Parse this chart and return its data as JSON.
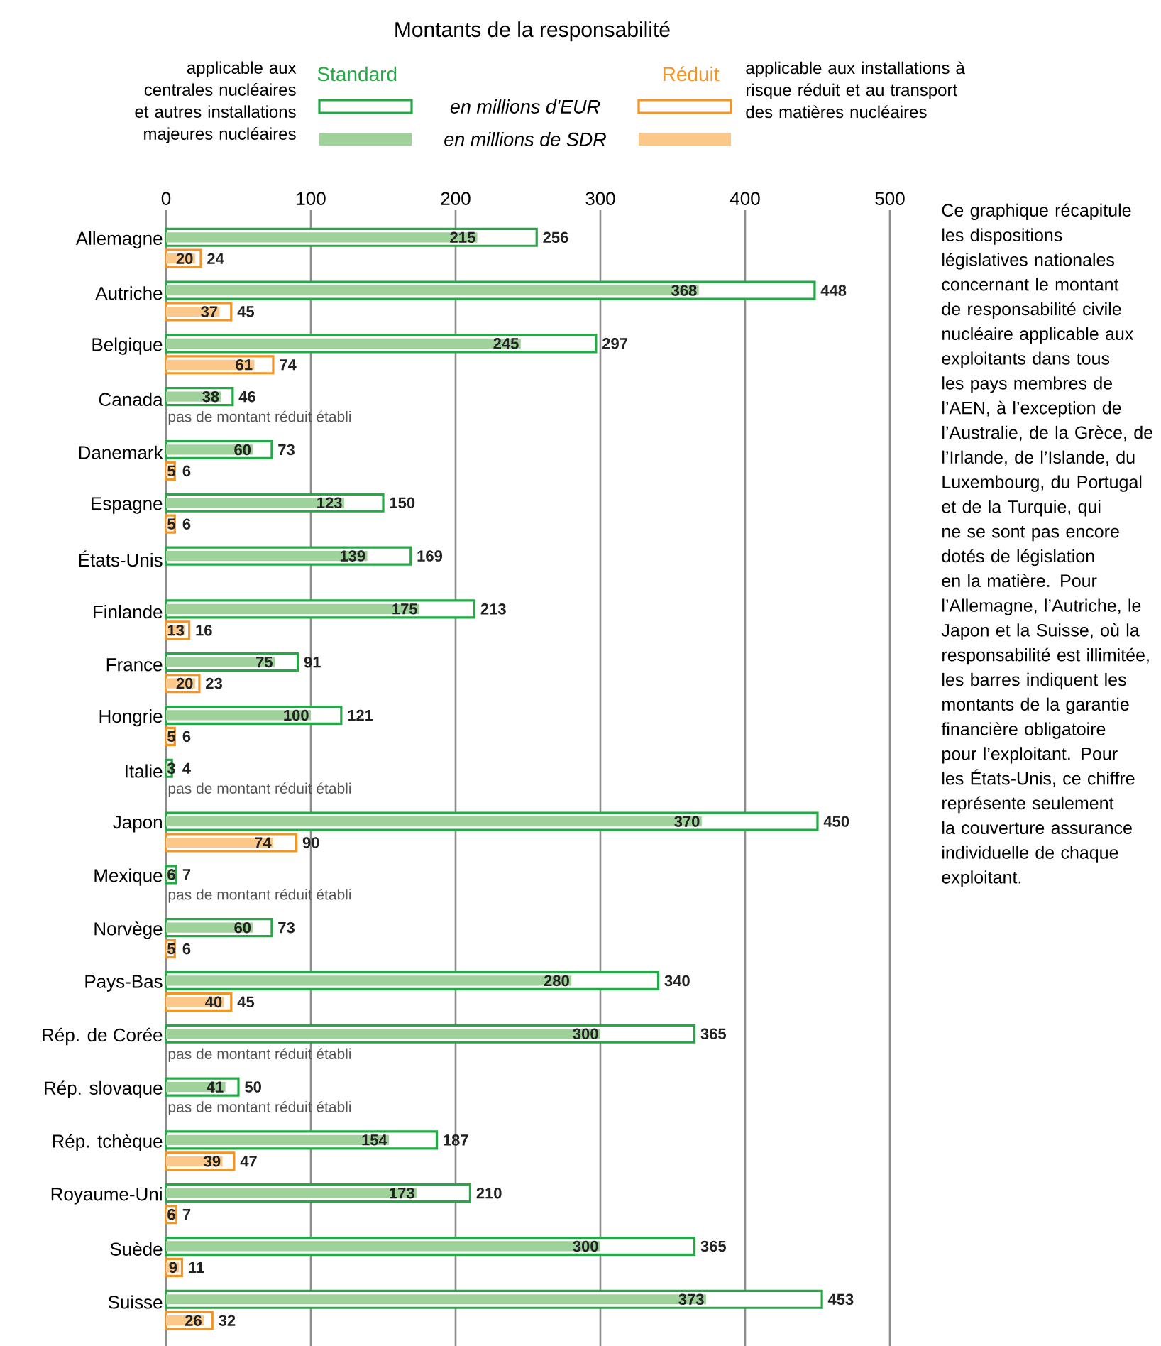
{
  "chart_data": {
    "type": "bar",
    "orientation": "horizontal",
    "title": "Montants de la responsabilité",
    "categories": [
      "Allemagne",
      "Autriche",
      "Belgique",
      "Canada",
      "Danemark",
      "Espagne",
      "États-Unis",
      "Finlande",
      "France",
      "Hongrie",
      "Italie",
      "Japon",
      "Mexique",
      "Norvège",
      "Pays-Bas",
      "Rép. de Corée",
      "Rép. slovaque",
      "Rép. tchèque",
      "Royaume-Uni",
      "Suède",
      "Suisse"
    ],
    "series": [
      {
        "name": "en millions d'EUR",
        "color": "#22aa44",
        "values": [
          256,
          448,
          297,
          46,
          73,
          150,
          169,
          213,
          91,
          121,
          4,
          450,
          7,
          73,
          340,
          365,
          50,
          187,
          210,
          365,
          453
        ]
      },
      {
        "name": "en millions de SDR",
        "color": "#9fd19b",
        "values": [
          215,
          368,
          245,
          38,
          60,
          123,
          139,
          175,
          75,
          100,
          3,
          370,
          6,
          60,
          280,
          300,
          41,
          154,
          173,
          300,
          373
        ]
      },
      {
        "color": "#f39423",
        "values": [
          24,
          45,
          74,
          null,
          6,
          6,
          null,
          16,
          23,
          6,
          null,
          90,
          null,
          6,
          45,
          null,
          null,
          47,
          7,
          11,
          32
        ]
      },
      {
        "color": "#fcc88a",
        "values": [
          20,
          37,
          61,
          null,
          5,
          5,
          null,
          13,
          20,
          5,
          null,
          74,
          null,
          5,
          40,
          null,
          null,
          39,
          6,
          9,
          26
        ]
      }
    ],
    "xlim": [
      0,
      500
    ],
    "xticks": [
      0,
      100,
      200,
      300,
      400,
      500
    ],
    "grid": "x",
    "legend": "top",
    "data_labels": true,
    "annotations": [
      "applicable aux centrales nucléaires et autres installations majeures nucléaires",
      "Standard",
      "Réduit",
      "applicable aux installations à risque réduit et au transport des matières nucléaires",
      "Ce graphique récapitule les dispositions législatives nationales concernant le montant de responsabilité civile nucléaire applicable aux exploitants dans tous les pays membres de l’AEN, à l’exception de l’Australie, de la Grèce, de l’Irlande, de l’Islande, du Luxembourg, du Portugal et de la Turquie, qui ne se sont pas encore dotés de législation en la matière. Pour l’Allemagne, l’Autriche, le Japon et la Suisse, où la responsabilité est illimitée, les barres indiquent les montants de la garantie financière obligatoire pour l’exploitant. Pour les États-Unis, ce chiffre représente seulement la couverture assurance individuelle de chaque exploitant.",
      "pas de montant réduit établi",
      "pas de montant réduit établi",
      "pas de montant réduit établi",
      "pas de montant réduit établi",
      "pas de montant réduit établi"
    ]
  }
}
